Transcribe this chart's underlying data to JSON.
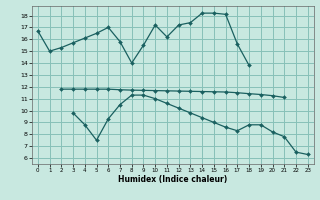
{
  "xlabel": "Humidex (Indice chaleur)",
  "xlim": [
    -0.5,
    23.5
  ],
  "ylim": [
    5.5,
    18.8
  ],
  "xticks": [
    0,
    1,
    2,
    3,
    4,
    5,
    6,
    7,
    8,
    9,
    10,
    11,
    12,
    13,
    14,
    15,
    16,
    17,
    18,
    19,
    20,
    21,
    22,
    23
  ],
  "yticks": [
    6,
    7,
    8,
    9,
    10,
    11,
    12,
    13,
    14,
    15,
    16,
    17,
    18
  ],
  "bg_color": "#c8e8e0",
  "grid_color": "#88c0b8",
  "line_color": "#1a6060",
  "line1_x": [
    0,
    1,
    2,
    3,
    4,
    5,
    6,
    7,
    8,
    9,
    10,
    11,
    12,
    13,
    14,
    15,
    16,
    17,
    18
  ],
  "line1_y": [
    16.7,
    15.0,
    15.3,
    15.7,
    16.1,
    16.5,
    17.0,
    15.8,
    14.0,
    15.5,
    17.2,
    16.2,
    17.2,
    17.4,
    18.2,
    18.2,
    18.1,
    15.6,
    13.8
  ],
  "line2_x": [
    2,
    3,
    4,
    5,
    6,
    7,
    8,
    9,
    10,
    11,
    12,
    13,
    14,
    15,
    16,
    17,
    18,
    19,
    20,
    21
  ],
  "line2_y": [
    11.8,
    11.8,
    11.8,
    11.8,
    11.8,
    11.75,
    11.72,
    11.7,
    11.68,
    11.66,
    11.64,
    11.62,
    11.6,
    11.58,
    11.56,
    11.5,
    11.42,
    11.35,
    11.25,
    11.1
  ],
  "line3_x": [
    3,
    4,
    5,
    6,
    7,
    8,
    9,
    10,
    11,
    12,
    13,
    14,
    15,
    16,
    17,
    18,
    19,
    20,
    21,
    22,
    23
  ],
  "line3_y": [
    9.8,
    8.8,
    7.5,
    9.3,
    10.5,
    11.3,
    11.3,
    11.0,
    10.6,
    10.2,
    9.8,
    9.4,
    9.0,
    8.6,
    8.3,
    8.8,
    8.8,
    8.2,
    7.8,
    6.5,
    6.3
  ]
}
